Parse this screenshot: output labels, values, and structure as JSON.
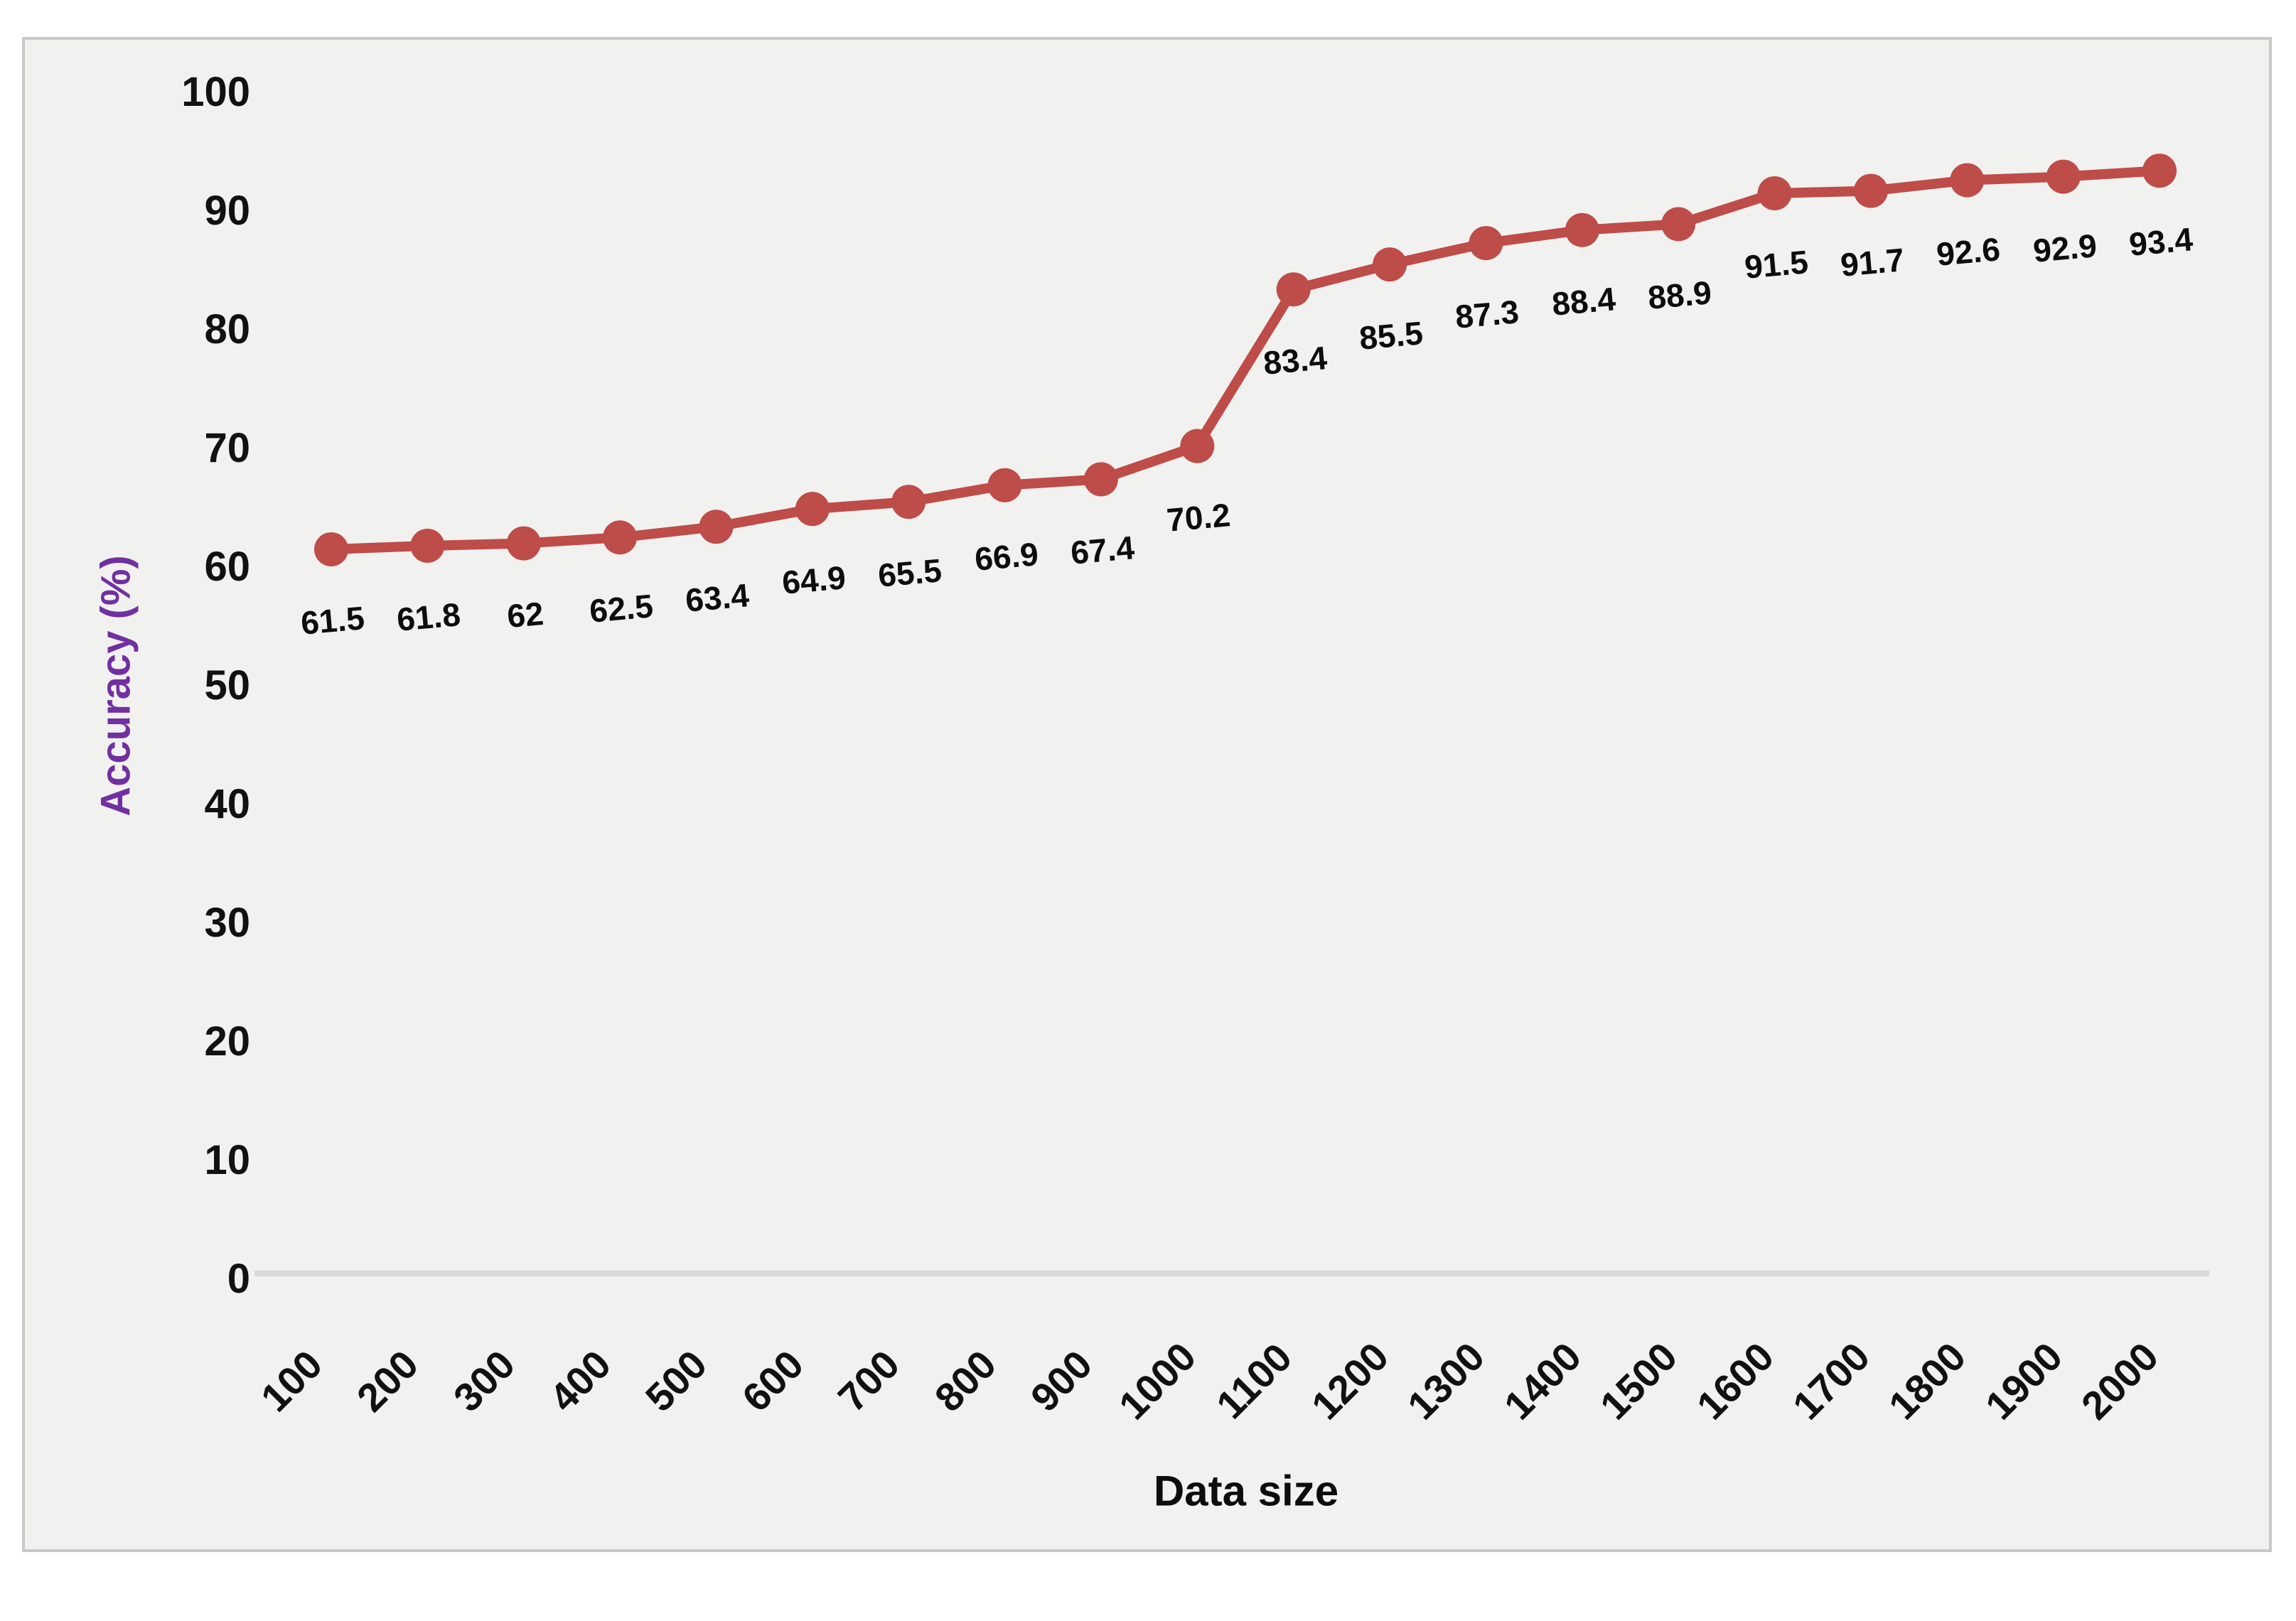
{
  "chart_data": {
    "type": "line",
    "title": "",
    "xlabel": "Data size",
    "ylabel": "Accuracy (%)",
    "categories": [
      "100",
      "200",
      "300",
      "400",
      "500",
      "600",
      "700",
      "800",
      "900",
      "1000",
      "1100",
      "1200",
      "1300",
      "1400",
      "1500",
      "1600",
      "1700",
      "1800",
      "1900",
      "2000"
    ],
    "series": [
      {
        "name": "Accuracy",
        "values": [
          61.5,
          61.8,
          62,
          62.5,
          63.4,
          64.9,
          65.5,
          66.9,
          67.4,
          70.2,
          83.4,
          85.5,
          87.3,
          88.4,
          88.9,
          91.5,
          91.7,
          92.6,
          92.9,
          93.4
        ]
      }
    ],
    "data_labels": [
      "61.5",
      "61.8",
      "62",
      "62.5",
      "63.4",
      "64.9",
      "65.5",
      "66.9",
      "67.4",
      "70.2",
      "83.4",
      "85.5",
      "87.3",
      "88.4",
      "88.9",
      "91.5",
      "91.7",
      "92.6",
      "92.9",
      "93.4"
    ],
    "ylim": [
      0,
      100
    ],
    "y_ticks": [
      "0",
      "10",
      "20",
      "30",
      "40",
      "50",
      "60",
      "70",
      "80",
      "90",
      "100"
    ],
    "grid": false,
    "legend": "none",
    "marker": "circle",
    "colors": {
      "line": "#be4c48",
      "ylabel": "#7030a0",
      "tick_text": "#111111",
      "axis_line": "#d9d9d9",
      "plot_bg": "#f1f1f0",
      "panel_border": "#c9c9c9",
      "page_bg": "#ffffff"
    }
  }
}
